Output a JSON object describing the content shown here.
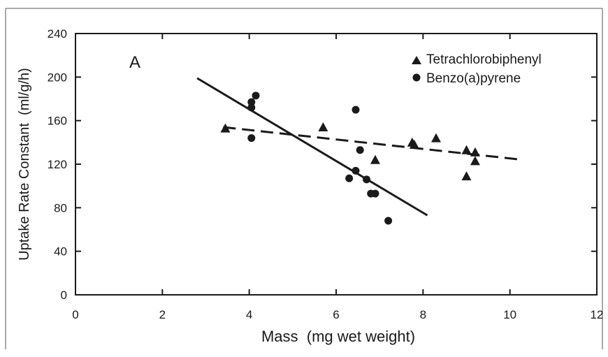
{
  "chart_data": {
    "type": "scatter",
    "panel_label": "A",
    "xlabel": "Mass  (mg wet weight)",
    "ylabel": "Uptake Rate Constant  (ml/g/h)",
    "xlim": [
      0,
      12
    ],
    "ylim": [
      0,
      240
    ],
    "x_ticks": [
      0,
      2,
      4,
      6,
      8,
      10,
      12
    ],
    "y_ticks": [
      0,
      40,
      80,
      120,
      160,
      200,
      240
    ],
    "grid": false,
    "legend_position": "top-right",
    "series": [
      {
        "name": "Tetrachlorobiphenyl",
        "marker": "triangle",
        "points": [
          [
            3.45,
            153
          ],
          [
            5.7,
            154
          ],
          [
            6.9,
            124
          ],
          [
            7.75,
            140
          ],
          [
            7.8,
            138
          ],
          [
            8.3,
            144
          ],
          [
            9.0,
            133
          ],
          [
            9.0,
            109
          ],
          [
            9.2,
            131
          ],
          [
            9.2,
            123
          ]
        ],
        "fit_line": {
          "style": "dashed",
          "x": [
            3.4,
            10.3
          ],
          "y": [
            154,
            124
          ]
        }
      },
      {
        "name": "Benzo(a)pyrene",
        "marker": "circle",
        "points": [
          [
            4.05,
            177
          ],
          [
            4.05,
            172
          ],
          [
            4.15,
            183
          ],
          [
            4.05,
            144
          ],
          [
            6.45,
            170
          ],
          [
            6.55,
            133
          ],
          [
            6.3,
            107
          ],
          [
            6.45,
            114
          ],
          [
            6.7,
            106
          ],
          [
            6.8,
            93
          ],
          [
            6.9,
            93
          ],
          [
            7.2,
            68
          ]
        ],
        "fit_line": {
          "style": "solid",
          "x": [
            2.8,
            8.1
          ],
          "y": [
            199,
            73
          ]
        }
      }
    ]
  }
}
